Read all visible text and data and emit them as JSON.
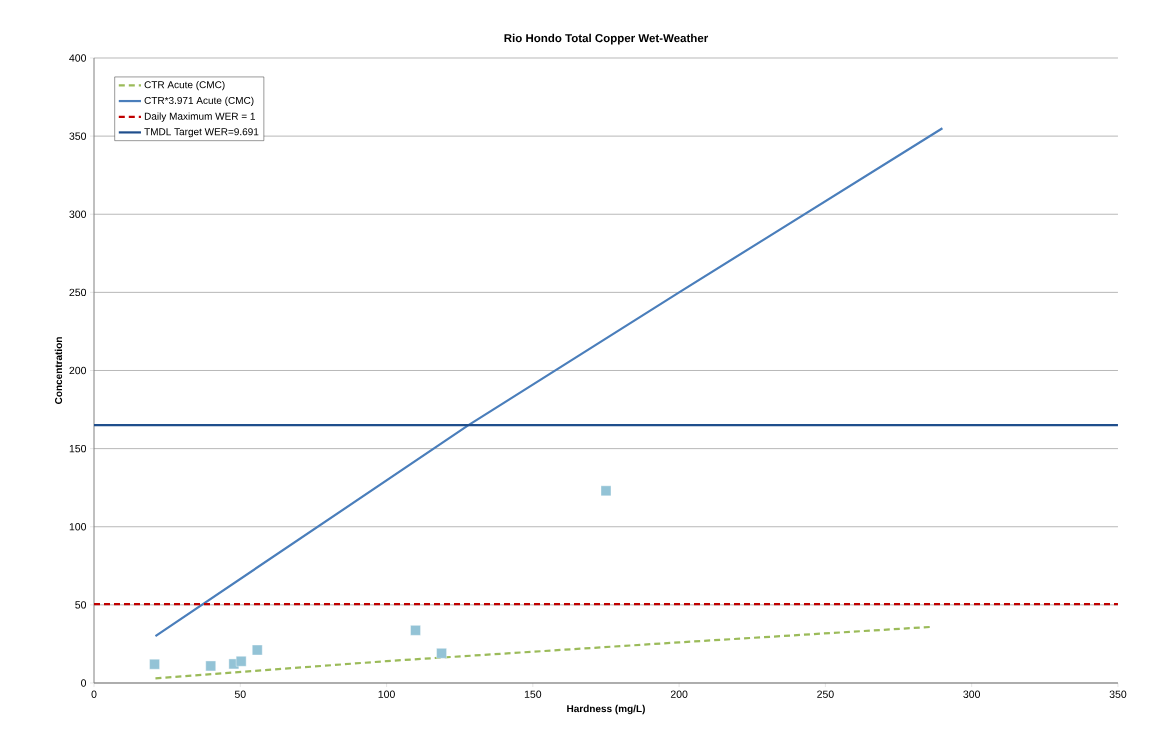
{
  "chart_data": {
    "type": "line",
    "title": "Rio Hondo Total Copper Wet-Weather",
    "xlabel": "Hardness (mg/L)",
    "ylabel": "Concentration",
    "xlim": [
      0,
      350
    ],
    "ylim": [
      0,
      400
    ],
    "xticks": [
      0,
      50,
      100,
      150,
      200,
      250,
      300,
      350
    ],
    "yticks": [
      0,
      50,
      100,
      150,
      200,
      250,
      300,
      350,
      400
    ],
    "grid": "y",
    "legend": "top left",
    "marker": "none",
    "series": [
      {
        "name": "CTR Acute (CMC)",
        "line_style": "dashed",
        "color": "#9bbb59",
        "x": [
          21,
          100,
          200,
          287
        ],
        "values": [
          3,
          14,
          26,
          36
        ]
      },
      {
        "name": "CTR*3.971 Acute (CMC)",
        "line_style": "solid",
        "color": "#4a7ebb",
        "x": [
          21,
          128,
          200,
          290
        ],
        "values": [
          30,
          165,
          250,
          355
        ]
      },
      {
        "name": "Daily Maximum WER = 1",
        "line_style": "dashed",
        "color": "#c00000",
        "x": [
          0,
          350
        ],
        "values": [
          50.5,
          50.5
        ]
      },
      {
        "name": "TMDL Target WER=9.691",
        "line_style": "solid",
        "color": "#1f4e8c",
        "x": [
          0,
          350
        ],
        "values": [
          165,
          165
        ]
      },
      {
        "type": "scatter",
        "marker": "square",
        "color": "#93c3d6",
        "x": [
          20.7,
          39.9,
          47.8,
          50.3,
          55.8,
          109.9,
          118.8,
          175
        ],
        "values": [
          12,
          10.9,
          12.2,
          13.9,
          21.1,
          33.7,
          19,
          123
        ]
      }
    ]
  }
}
